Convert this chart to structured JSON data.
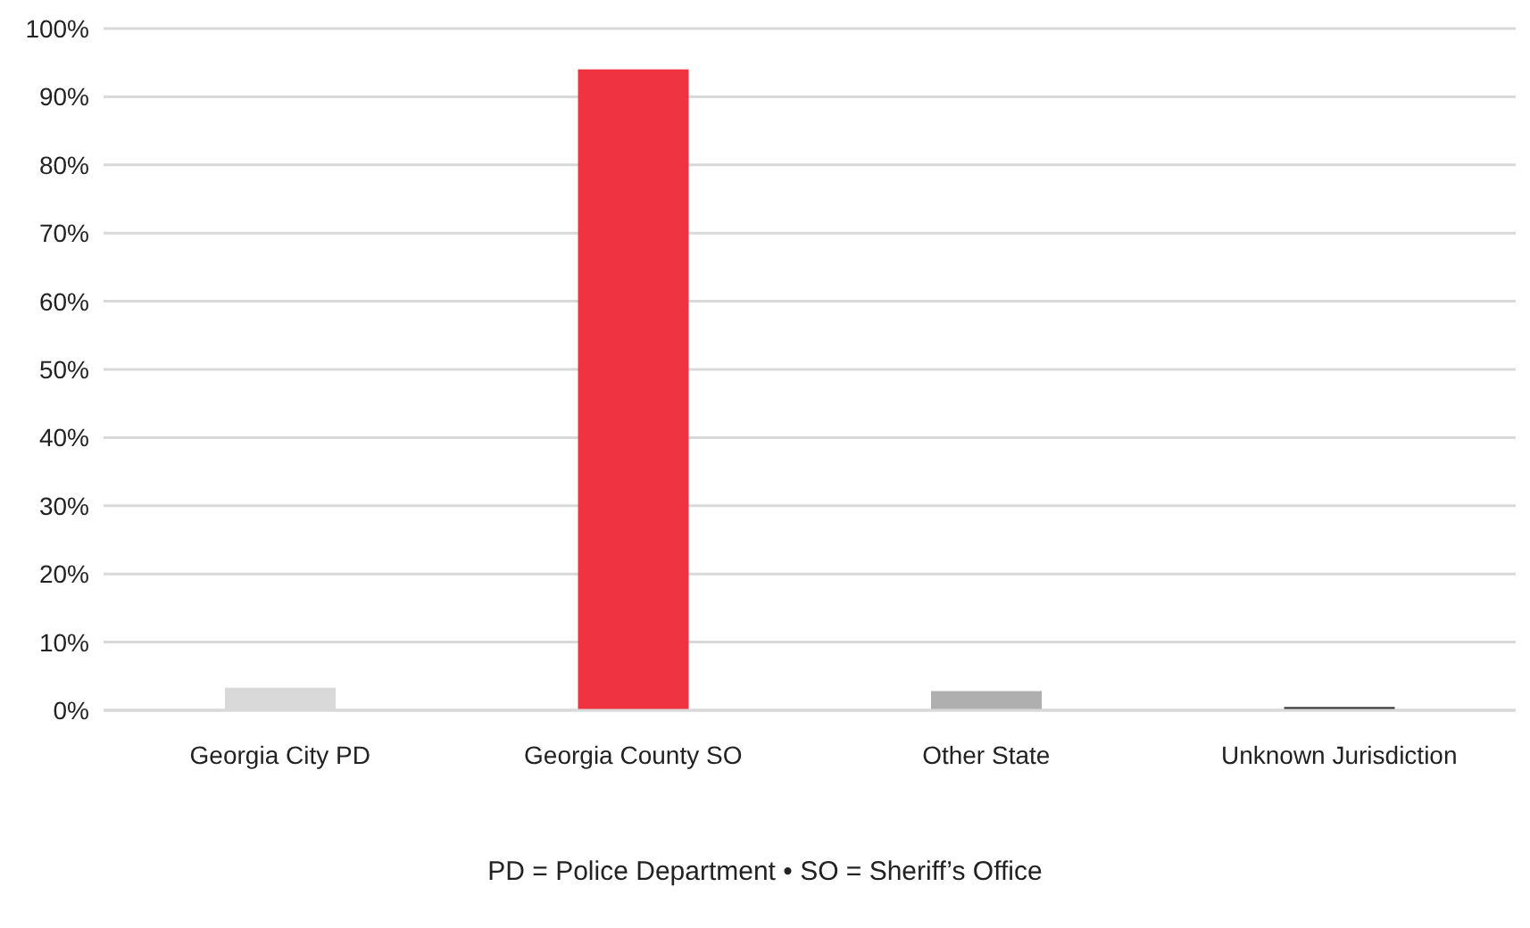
{
  "chart_data": {
    "type": "bar",
    "categories": [
      "Georgia City PD",
      "Georgia County SO",
      "Other State",
      "Unknown Jurisdiction"
    ],
    "values": [
      3.3,
      94,
      2.8,
      0.5
    ],
    "colors": [
      "#d9d9d9",
      "#ef3340",
      "#afafaf",
      "#404040"
    ],
    "ylim": [
      0,
      100
    ],
    "yticks": [
      {
        "value": 0,
        "label": "0%"
      },
      {
        "value": 10,
        "label": "10%"
      },
      {
        "value": 20,
        "label": "20%"
      },
      {
        "value": 30,
        "label": "30%"
      },
      {
        "value": 40,
        "label": "40%"
      },
      {
        "value": 50,
        "label": "50%"
      },
      {
        "value": 60,
        "label": "60%"
      },
      {
        "value": 70,
        "label": "70%"
      },
      {
        "value": 80,
        "label": "80%"
      },
      {
        "value": 90,
        "label": "90%"
      },
      {
        "value": 100,
        "label": "100%"
      }
    ],
    "grid": "y",
    "annotations": [
      "PD = Police Department • SO = Sheriff’s Office"
    ]
  }
}
